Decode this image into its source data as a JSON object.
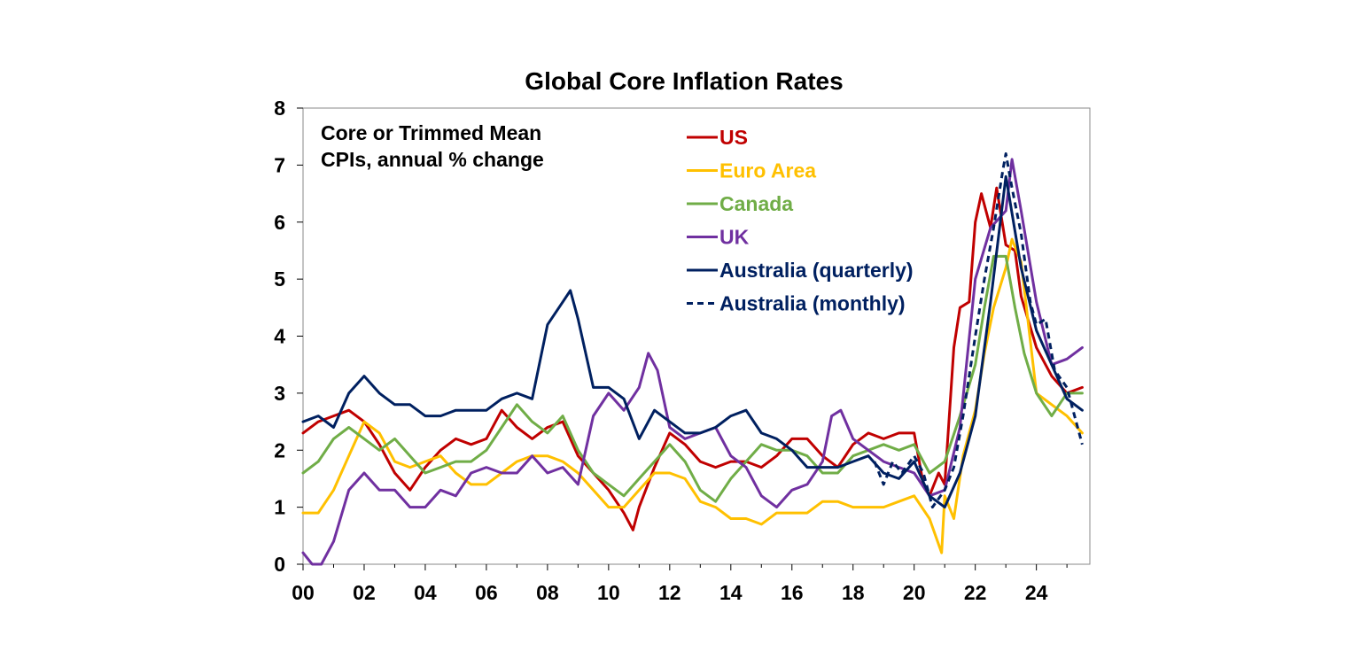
{
  "chart_data": {
    "type": "line",
    "title": "Global Core Inflation Rates",
    "annotation": [
      "Core or Trimmed Mean",
      "CPIs, annual % change"
    ],
    "xlabel": "",
    "ylabel": "",
    "xlim": [
      2000,
      2025.75
    ],
    "ylim": [
      0,
      8
    ],
    "x_ticks": [
      2000,
      2002,
      2004,
      2006,
      2008,
      2010,
      2012,
      2014,
      2016,
      2018,
      2020,
      2022,
      2024
    ],
    "x_tick_labels": [
      "00",
      "02",
      "04",
      "06",
      "08",
      "10",
      "12",
      "14",
      "16",
      "18",
      "20",
      "22",
      "24"
    ],
    "y_ticks": [
      0,
      1,
      2,
      3,
      4,
      5,
      6,
      7,
      8
    ],
    "y_tick_labels": [
      "0",
      "1",
      "2",
      "3",
      "4",
      "5",
      "6",
      "7",
      "8"
    ],
    "grid": false,
    "legend": "top-center",
    "series": [
      {
        "name": "US",
        "color": "#c00000",
        "dash": false,
        "x": [
          2000,
          2000.5,
          2001,
          2001.5,
          2002,
          2002.5,
          2003,
          2003.5,
          2004,
          2004.5,
          2005,
          2005.5,
          2006,
          2006.5,
          2007,
          2007.5,
          2008,
          2008.5,
          2009,
          2009.5,
          2010,
          2010.5,
          2010.8,
          2011,
          2011.5,
          2012,
          2012.5,
          2013,
          2013.5,
          2014,
          2014.5,
          2015,
          2015.5,
          2016,
          2016.5,
          2017,
          2017.5,
          2018,
          2018.5,
          2019,
          2019.5,
          2020,
          2020.3,
          2020.5,
          2020.8,
          2021,
          2021.3,
          2021.5,
          2021.8,
          2022,
          2022.2,
          2022.5,
          2022.7,
          2023,
          2023.3,
          2023.5,
          2024,
          2024.5,
          2025,
          2025.5
        ],
        "y": [
          2.3,
          2.5,
          2.6,
          2.7,
          2.5,
          2.1,
          1.6,
          1.3,
          1.7,
          2.0,
          2.2,
          2.1,
          2.2,
          2.7,
          2.4,
          2.2,
          2.4,
          2.5,
          1.9,
          1.6,
          1.3,
          0.9,
          0.6,
          1.0,
          1.7,
          2.3,
          2.1,
          1.8,
          1.7,
          1.8,
          1.8,
          1.7,
          1.9,
          2.2,
          2.2,
          1.9,
          1.7,
          2.1,
          2.3,
          2.2,
          2.3,
          2.3,
          1.4,
          1.2,
          1.6,
          1.4,
          3.8,
          4.5,
          4.6,
          6.0,
          6.5,
          5.9,
          6.6,
          5.6,
          5.5,
          4.7,
          3.8,
          3.3,
          3.0,
          3.1
        ]
      },
      {
        "name": "Euro Area",
        "color": "#ffc000",
        "dash": false,
        "x": [
          2000,
          2000.5,
          2001,
          2001.5,
          2002,
          2002.5,
          2003,
          2003.5,
          2004,
          2004.5,
          2005,
          2005.5,
          2006,
          2006.5,
          2007,
          2007.5,
          2008,
          2008.5,
          2009,
          2009.5,
          2010,
          2010.5,
          2011,
          2011.5,
          2012,
          2012.5,
          2013,
          2013.5,
          2014,
          2014.5,
          2015,
          2015.5,
          2016,
          2016.5,
          2017,
          2017.5,
          2018,
          2018.5,
          2019,
          2019.5,
          2020,
          2020.5,
          2020.9,
          2021,
          2021.3,
          2021.6,
          2022,
          2022.3,
          2022.6,
          2023,
          2023.2,
          2023.5,
          2024,
          2024.5,
          2025,
          2025.5
        ],
        "y": [
          0.9,
          0.9,
          1.3,
          1.9,
          2.5,
          2.3,
          1.8,
          1.7,
          1.8,
          1.9,
          1.6,
          1.4,
          1.4,
          1.6,
          1.8,
          1.9,
          1.9,
          1.8,
          1.6,
          1.3,
          1.0,
          1.0,
          1.3,
          1.6,
          1.6,
          1.5,
          1.1,
          1.0,
          0.8,
          0.8,
          0.7,
          0.9,
          0.9,
          0.9,
          1.1,
          1.1,
          1.0,
          1.0,
          1.0,
          1.1,
          1.2,
          0.8,
          0.2,
          1.2,
          0.8,
          1.9,
          2.7,
          3.7,
          4.5,
          5.2,
          5.7,
          5.3,
          3.0,
          2.8,
          2.6,
          2.3
        ]
      },
      {
        "name": "Canada",
        "color": "#70ad47",
        "dash": false,
        "x": [
          2000,
          2000.5,
          2001,
          2001.5,
          2002,
          2002.5,
          2003,
          2003.5,
          2004,
          2004.5,
          2005,
          2005.5,
          2006,
          2006.5,
          2007,
          2007.5,
          2008,
          2008.5,
          2009,
          2009.5,
          2010,
          2010.5,
          2011,
          2011.5,
          2012,
          2012.5,
          2013,
          2013.5,
          2014,
          2014.5,
          2015,
          2015.5,
          2016,
          2016.5,
          2017,
          2017.5,
          2018,
          2018.5,
          2019,
          2019.5,
          2020,
          2020.5,
          2021,
          2021.5,
          2022,
          2022.3,
          2022.6,
          2023,
          2023.3,
          2023.6,
          2024,
          2024.5,
          2025,
          2025.5
        ],
        "y": [
          1.6,
          1.8,
          2.2,
          2.4,
          2.2,
          2.0,
          2.2,
          1.9,
          1.6,
          1.7,
          1.8,
          1.8,
          2.0,
          2.4,
          2.8,
          2.5,
          2.3,
          2.6,
          2.0,
          1.6,
          1.4,
          1.2,
          1.5,
          1.8,
          2.1,
          1.8,
          1.3,
          1.1,
          1.5,
          1.8,
          2.1,
          2.0,
          2.0,
          1.9,
          1.6,
          1.6,
          1.9,
          2.0,
          2.1,
          2.0,
          2.1,
          1.6,
          1.8,
          2.6,
          3.5,
          4.5,
          5.4,
          5.4,
          4.5,
          3.7,
          3.0,
          2.6,
          3.0,
          3.0
        ]
      },
      {
        "name": "UK",
        "color": "#7030a0",
        "dash": false,
        "x": [
          2000,
          2000.3,
          2000.6,
          2001,
          2001.5,
          2002,
          2002.5,
          2003,
          2003.5,
          2004,
          2004.5,
          2005,
          2005.5,
          2006,
          2006.5,
          2007,
          2007.5,
          2008,
          2008.5,
          2009,
          2009.5,
          2010,
          2010.5,
          2011,
          2011.3,
          2011.6,
          2012,
          2012.5,
          2013,
          2013.5,
          2014,
          2014.5,
          2015,
          2015.5,
          2016,
          2016.5,
          2017,
          2017.3,
          2017.6,
          2018,
          2018.5,
          2019,
          2019.5,
          2020,
          2020.5,
          2021,
          2021.5,
          2022,
          2022.5,
          2023,
          2023.2,
          2023.5,
          2024,
          2024.5,
          2025,
          2025.5
        ],
        "y": [
          0.2,
          0.0,
          0.0,
          0.4,
          1.3,
          1.6,
          1.3,
          1.3,
          1.0,
          1.0,
          1.3,
          1.2,
          1.6,
          1.7,
          1.6,
          1.6,
          1.9,
          1.6,
          1.7,
          1.4,
          2.6,
          3.0,
          2.7,
          3.1,
          3.7,
          3.4,
          2.4,
          2.2,
          2.3,
          2.4,
          1.9,
          1.7,
          1.2,
          1.0,
          1.3,
          1.4,
          1.8,
          2.6,
          2.7,
          2.2,
          2.0,
          1.8,
          1.7,
          1.6,
          1.2,
          1.3,
          2.4,
          5.0,
          5.9,
          6.2,
          7.1,
          6.2,
          4.6,
          3.5,
          3.6,
          3.8
        ]
      },
      {
        "name": "Australia (quarterly)",
        "color": "#002060",
        "dash": false,
        "x": [
          2000,
          2000.5,
          2001,
          2001.5,
          2002,
          2002.5,
          2003,
          2003.5,
          2004,
          2004.5,
          2005,
          2005.5,
          2006,
          2006.5,
          2007,
          2007.5,
          2008,
          2008.5,
          2008.75,
          2009,
          2009.5,
          2010,
          2010.5,
          2011,
          2011.5,
          2012,
          2012.5,
          2013,
          2013.5,
          2014,
          2014.5,
          2015,
          2015.5,
          2016,
          2016.5,
          2017,
          2017.5,
          2018,
          2018.5,
          2019,
          2019.5,
          2020,
          2020.5,
          2021,
          2021.5,
          2022,
          2022.5,
          2023,
          2023.5,
          2024,
          2024.5,
          2025,
          2025.5
        ],
        "y": [
          2.5,
          2.6,
          2.4,
          3.0,
          3.3,
          3.0,
          2.8,
          2.8,
          2.6,
          2.6,
          2.7,
          2.7,
          2.7,
          2.9,
          3.0,
          2.9,
          4.2,
          4.6,
          4.8,
          4.3,
          3.1,
          3.1,
          2.9,
          2.2,
          2.7,
          2.5,
          2.3,
          2.3,
          2.4,
          2.6,
          2.7,
          2.3,
          2.2,
          2.0,
          1.7,
          1.7,
          1.7,
          1.8,
          1.9,
          1.6,
          1.5,
          1.8,
          1.2,
          1.0,
          1.6,
          2.6,
          4.6,
          6.8,
          5.2,
          4.1,
          3.5,
          2.9,
          2.7
        ]
      },
      {
        "name": "Australia (monthly)",
        "color": "#002060",
        "dash": true,
        "x": [
          2018.7,
          2019,
          2019.3,
          2019.6,
          2020,
          2020.3,
          2020.6,
          2021,
          2021.3,
          2021.6,
          2022,
          2022.3,
          2022.6,
          2022.9,
          2023,
          2023.2,
          2023.5,
          2023.8,
          2024,
          2024.3,
          2024.6,
          2025,
          2025.3,
          2025.5
        ],
        "y": [
          1.8,
          1.4,
          1.8,
          1.6,
          1.9,
          1.6,
          1.0,
          1.3,
          1.7,
          2.6,
          4.0,
          5.0,
          5.9,
          6.9,
          7.2,
          6.6,
          5.8,
          4.6,
          4.2,
          4.3,
          3.4,
          3.1,
          2.5,
          2.1
        ]
      }
    ]
  }
}
